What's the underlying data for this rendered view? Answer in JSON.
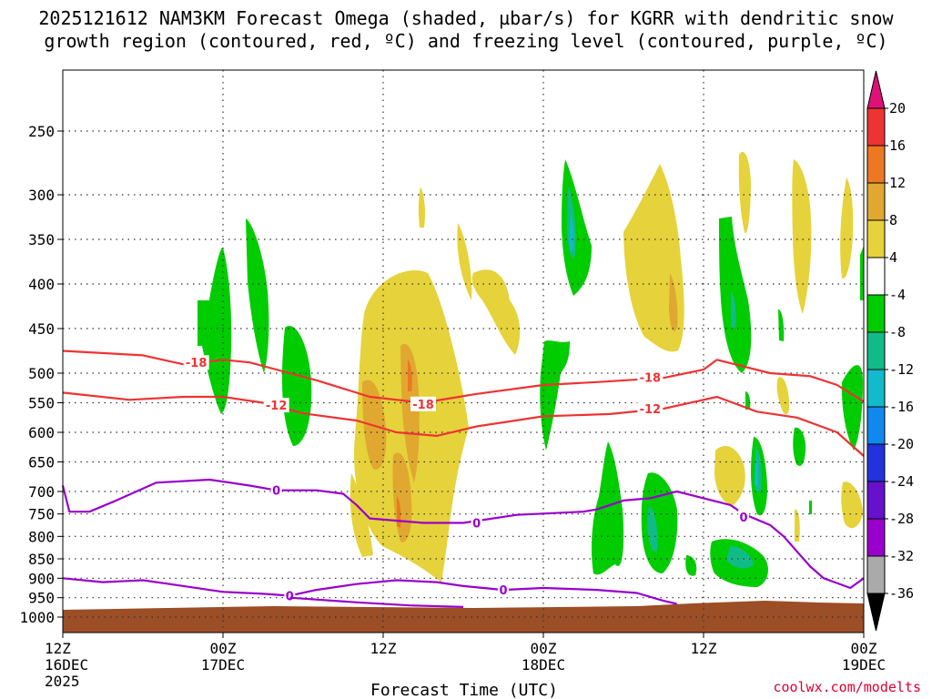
{
  "chart_data": {
    "type": "time-height cross-section",
    "title_line1": "2025121612 NAM3KM Forecast Omega (shaded, µbar/s) for KGRR with dendritic snow",
    "title_line2": "growth region (contoured, red, ºC) and freezing level (contoured, purple, ºC)",
    "xlabel": "Forecast Time (UTC)",
    "credit": "coolwx.com/modelts",
    "x_hours_range": [
      0,
      60
    ],
    "x_ticks": [
      {
        "hour": 0,
        "l1": "12Z",
        "l2": "16DEC",
        "l3": "2025"
      },
      {
        "hour": 12,
        "l1": "00Z",
        "l2": "17DEC",
        "l3": ""
      },
      {
        "hour": 24,
        "l1": "12Z",
        "l2": "",
        "l3": ""
      },
      {
        "hour": 36,
        "l1": "00Z",
        "l2": "18DEC",
        "l3": ""
      },
      {
        "hour": 48,
        "l1": "12Z",
        "l2": "",
        "l3": ""
      },
      {
        "hour": 60,
        "l1": "00Z",
        "l2": "19DEC",
        "l3": ""
      }
    ],
    "pressure_levels": [
      250,
      300,
      350,
      400,
      450,
      500,
      550,
      600,
      650,
      700,
      750,
      800,
      850,
      900,
      950,
      1000
    ],
    "colorbar": {
      "labels": [
        "20",
        "16",
        "12",
        "8",
        "4",
        "-4",
        "-8",
        "-12",
        "-16",
        "-20",
        "-24",
        "-28",
        "-32",
        "-36"
      ],
      "colors": [
        "#dd1177",
        "#ee3333",
        "#ee7722",
        "#e0a830",
        "#e6d23a",
        "#ffffff",
        "#00cc00",
        "#11bb88",
        "#11bbcc",
        "#1188ee",
        "#2233dd",
        "#6611cc",
        "#9900cc",
        "#aaaaaa",
        "#000000"
      ]
    },
    "red_contours": [
      {
        "label": "-18",
        "points": [
          [
            0,
            475
          ],
          [
            6,
            480
          ],
          [
            9,
            490
          ],
          [
            12,
            485
          ],
          [
            14,
            488
          ],
          [
            17,
            500
          ],
          [
            19,
            512
          ],
          [
            23,
            540
          ],
          [
            27,
            550
          ],
          [
            31,
            535
          ],
          [
            36,
            520
          ],
          [
            40,
            515
          ],
          [
            45,
            508
          ],
          [
            48,
            496
          ],
          [
            49,
            485
          ],
          [
            53,
            500
          ],
          [
            56,
            505
          ],
          [
            58,
            520
          ],
          [
            60,
            548
          ]
        ],
        "label_positions": [
          [
            10,
            488
          ],
          [
            27,
            552
          ],
          [
            44,
            507
          ]
        ]
      },
      {
        "label": "-12",
        "points": [
          [
            0,
            533
          ],
          [
            5,
            545
          ],
          [
            9,
            540
          ],
          [
            12,
            540
          ],
          [
            15,
            550
          ],
          [
            18,
            568
          ],
          [
            22,
            580
          ],
          [
            25,
            600
          ],
          [
            28,
            606
          ],
          [
            31,
            590
          ],
          [
            36,
            573
          ],
          [
            41,
            569
          ],
          [
            45,
            560
          ],
          [
            49,
            540
          ],
          [
            52,
            565
          ],
          [
            55,
            575
          ],
          [
            58,
            600
          ],
          [
            60,
            640
          ]
        ],
        "label_positions": [
          [
            16,
            554
          ],
          [
            44,
            560
          ]
        ]
      }
    ],
    "purple_contours": [
      {
        "label": "0",
        "points": [
          [
            0,
            690
          ],
          [
            0.5,
            745
          ],
          [
            2,
            745
          ],
          [
            4,
            720
          ],
          [
            7,
            685
          ],
          [
            11,
            680
          ],
          [
            14,
            690
          ],
          [
            16,
            698
          ],
          [
            19,
            698
          ],
          [
            21,
            705
          ],
          [
            22,
            730
          ],
          [
            23,
            760
          ],
          [
            27,
            770
          ],
          [
            30,
            770
          ],
          [
            34,
            752
          ],
          [
            39,
            745
          ],
          [
            40,
            740
          ],
          [
            42,
            720
          ],
          [
            44,
            715
          ],
          [
            46,
            700
          ],
          [
            48,
            715
          ],
          [
            50,
            730
          ],
          [
            51,
            750
          ],
          [
            53,
            775
          ],
          [
            54,
            800
          ],
          [
            56,
            870
          ],
          [
            57,
            900
          ],
          [
            59,
            925
          ],
          [
            60,
            900
          ]
        ],
        "label_positions": [
          [
            16,
            698
          ],
          [
            31,
            770
          ],
          [
            51,
            757
          ]
        ]
      },
      {
        "label": "0",
        "points": [
          [
            0,
            900
          ],
          [
            3,
            910
          ],
          [
            6,
            905
          ],
          [
            8,
            915
          ],
          [
            12,
            935
          ],
          [
            15,
            940
          ],
          [
            17,
            945
          ],
          [
            19,
            930
          ],
          [
            22,
            915
          ],
          [
            25,
            905
          ],
          [
            28,
            910
          ],
          [
            30,
            920
          ],
          [
            33,
            930
          ],
          [
            36,
            925
          ],
          [
            40,
            930
          ],
          [
            43,
            938
          ],
          [
            44,
            948
          ],
          [
            45,
            958
          ],
          [
            46,
            966
          ]
        ],
        "label_positions": [
          [
            17,
            945
          ],
          [
            33,
            930
          ]
        ]
      },
      {
        "label": "0",
        "points": [
          [
            17,
            950
          ],
          [
            22,
            962
          ],
          [
            26,
            970
          ],
          [
            30,
            974
          ]
        ],
        "label_positions": []
      }
    ]
  }
}
